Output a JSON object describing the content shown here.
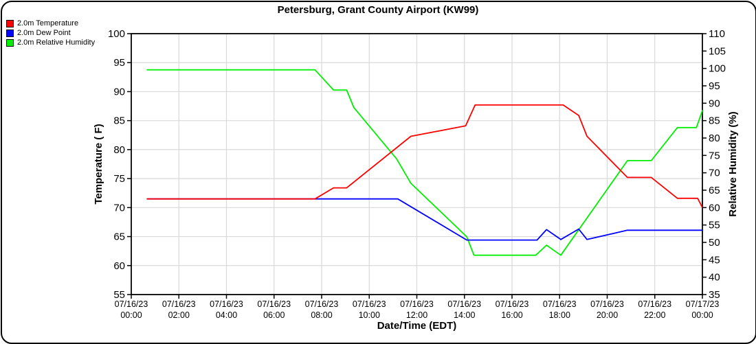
{
  "page": {
    "title": "Petersburg, Grant County Airport (KW99)"
  },
  "legend": [
    {
      "label": "2.0m Temperature",
      "color": "#ff0000"
    },
    {
      "label": "2.0m Dew Point",
      "color": "#0000ff"
    },
    {
      "label": "2.0m Relative Humidity",
      "color": "#00ee00"
    }
  ],
  "chart_data": {
    "type": "line",
    "title": "Petersburg, Grant County Airport (KW99)",
    "xlabel": "Date/Time (EDT)",
    "grid": true,
    "legend_position": "top-left",
    "colors": {
      "axis": "#000000",
      "gridline": "#d9d9d9",
      "background": "#ffffff"
    },
    "x_range_hours": [
      0,
      24
    ],
    "x_tick_interval_hours": 2,
    "x_ticks": [
      {
        "date": "07/16/23",
        "time": "00:00"
      },
      {
        "date": "07/16/23",
        "time": "02:00"
      },
      {
        "date": "07/16/23",
        "time": "04:00"
      },
      {
        "date": "07/16/23",
        "time": "06:00"
      },
      {
        "date": "07/16/23",
        "time": "08:00"
      },
      {
        "date": "07/16/23",
        "time": "10:00"
      },
      {
        "date": "07/16/23",
        "time": "12:00"
      },
      {
        "date": "07/16/23",
        "time": "14:00"
      },
      {
        "date": "07/16/23",
        "time": "16:00"
      },
      {
        "date": "07/16/23",
        "time": "18:00"
      },
      {
        "date": "07/16/23",
        "time": "20:00"
      },
      {
        "date": "07/16/23",
        "time": "22:00"
      },
      {
        "date": "07/17/23",
        "time": "00:00"
      }
    ],
    "y_left": {
      "label": "Temperature ( F)",
      "range": [
        55,
        100
      ],
      "tick_step": 5,
      "ticks": [
        55,
        60,
        65,
        70,
        75,
        80,
        85,
        90,
        95,
        100
      ]
    },
    "y_right": {
      "label": "Relative Humidity (%)",
      "range": [
        35,
        110
      ],
      "tick_step": 5,
      "ticks": [
        35,
        40,
        45,
        50,
        55,
        60,
        65,
        70,
        75,
        80,
        85,
        90,
        95,
        100,
        105,
        110
      ]
    },
    "series": [
      {
        "name": "2.0m Relative Humidity",
        "axis": "right",
        "color": "#00ee00",
        "points": [
          [
            0.67,
            99.6
          ],
          [
            7.72,
            99.6
          ],
          [
            8.5,
            93.8
          ],
          [
            9.05,
            93.8
          ],
          [
            9.35,
            88.8
          ],
          [
            11.15,
            74.0
          ],
          [
            11.75,
            67.0
          ],
          [
            14.1,
            51.6
          ],
          [
            14.4,
            46.3
          ],
          [
            17.0,
            46.3
          ],
          [
            17.45,
            49.2
          ],
          [
            18.05,
            46.3
          ],
          [
            20.85,
            73.5
          ],
          [
            21.85,
            73.5
          ],
          [
            22.95,
            83.0
          ],
          [
            23.75,
            83.0
          ],
          [
            24,
            87.9
          ]
        ]
      },
      {
        "name": "2.0m Dew Point",
        "axis": "left",
        "color": "#0000ff",
        "points": [
          [
            0.67,
            71.5
          ],
          [
            11.2,
            71.5
          ],
          [
            14.1,
            64.4
          ],
          [
            17.05,
            64.4
          ],
          [
            17.45,
            66.2
          ],
          [
            18.05,
            64.5
          ],
          [
            18.8,
            66.3
          ],
          [
            19.15,
            64.5
          ],
          [
            20.85,
            66.1
          ],
          [
            24,
            66.1
          ]
        ]
      },
      {
        "name": "2.0m Temperature",
        "axis": "left",
        "color": "#ff0000",
        "points": [
          [
            0.67,
            71.5
          ],
          [
            7.72,
            71.5
          ],
          [
            8.5,
            73.4
          ],
          [
            9.05,
            73.4
          ],
          [
            11.75,
            82.3
          ],
          [
            14.05,
            84.1
          ],
          [
            14.45,
            87.7
          ],
          [
            18.15,
            87.7
          ],
          [
            18.8,
            85.9
          ],
          [
            19.15,
            82.3
          ],
          [
            20.85,
            75.2
          ],
          [
            21.85,
            75.2
          ],
          [
            22.95,
            71.6
          ],
          [
            23.8,
            71.6
          ],
          [
            24,
            70.0
          ]
        ]
      }
    ]
  }
}
